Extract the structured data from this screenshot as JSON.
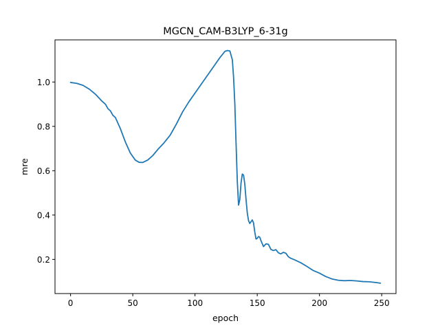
{
  "chart_data": {
    "type": "line",
    "title": "MGCN_CAM-B3LYP_6-31g",
    "xlabel": "epoch",
    "ylabel": "mre",
    "xlim": [
      -12.5,
      261.5
    ],
    "ylim": [
      0.046,
      1.19
    ],
    "xticks": [
      0,
      50,
      100,
      150,
      200,
      250
    ],
    "yticks": [
      0.2,
      0.4,
      0.6,
      0.8,
      1.0
    ],
    "ytick_labels": [
      "0.2",
      "0.4",
      "0.6",
      "0.8",
      "1.0"
    ],
    "grid": false,
    "series_color": "#1f77b4",
    "series": [
      {
        "x": [
          0,
          5,
          10,
          15,
          20,
          25,
          28,
          30,
          32,
          34,
          36,
          40,
          44,
          48,
          52,
          55,
          58,
          62,
          66,
          70,
          75,
          80,
          85,
          90,
          95,
          100,
          105,
          110,
          115,
          120,
          124,
          126,
          128,
          130,
          131,
          132,
          133,
          134,
          135,
          136,
          137,
          138,
          139,
          140,
          141,
          142,
          143,
          144,
          145,
          146,
          147,
          148,
          149,
          150,
          151,
          152,
          153,
          155,
          157,
          159,
          161,
          163,
          165,
          167,
          169,
          171,
          173,
          175,
          177,
          180,
          185,
          190,
          195,
          200,
          205,
          210,
          215,
          220,
          225,
          230,
          235,
          240,
          245,
          249
        ],
        "y": [
          0.998,
          0.994,
          0.985,
          0.968,
          0.945,
          0.915,
          0.9,
          0.88,
          0.87,
          0.85,
          0.84,
          0.79,
          0.73,
          0.68,
          0.648,
          0.638,
          0.637,
          0.648,
          0.668,
          0.695,
          0.725,
          0.76,
          0.81,
          0.865,
          0.91,
          0.95,
          0.99,
          1.03,
          1.07,
          1.11,
          1.138,
          1.142,
          1.14,
          1.1,
          1.02,
          0.9,
          0.72,
          0.55,
          0.445,
          0.47,
          0.545,
          0.585,
          0.58,
          0.54,
          0.47,
          0.41,
          0.375,
          0.362,
          0.37,
          0.378,
          0.365,
          0.325,
          0.292,
          0.295,
          0.303,
          0.3,
          0.285,
          0.258,
          0.27,
          0.268,
          0.245,
          0.24,
          0.244,
          0.23,
          0.225,
          0.232,
          0.228,
          0.212,
          0.205,
          0.198,
          0.185,
          0.168,
          0.15,
          0.138,
          0.123,
          0.112,
          0.106,
          0.104,
          0.105,
          0.103,
          0.1,
          0.099,
          0.096,
          0.093
        ]
      }
    ]
  }
}
